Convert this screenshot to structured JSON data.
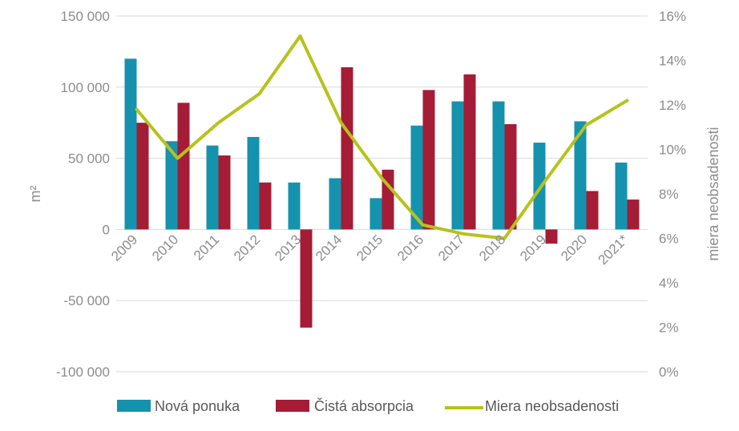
{
  "chart_data": {
    "type": "bar",
    "categories": [
      "2009",
      "2010",
      "2011",
      "2012",
      "2013",
      "2014",
      "2015",
      "2016",
      "2017",
      "2018",
      "2019",
      "2020",
      "2021*"
    ],
    "series": [
      {
        "name": "Nová ponuka",
        "kind": "bar",
        "axis": "left",
        "color": "#1592ad",
        "values": [
          120000,
          62000,
          59000,
          65000,
          33000,
          36000,
          22000,
          73000,
          90000,
          90000,
          61000,
          76000,
          47000
        ]
      },
      {
        "name": "Čistá absorpcia",
        "kind": "bar",
        "axis": "left",
        "color": "#a51c36",
        "values": [
          75000,
          89000,
          52000,
          33000,
          -69000,
          114000,
          42000,
          98000,
          109000,
          74000,
          -10000,
          27000,
          21000
        ]
      },
      {
        "name": "Miera neobsadenosti",
        "kind": "line",
        "axis": "right",
        "color": "#b7c21b",
        "values": [
          11.8,
          9.6,
          11.2,
          12.5,
          15.1,
          11.2,
          8.7,
          6.6,
          6.2,
          6.0,
          8.6,
          11.1,
          12.2
        ]
      }
    ],
    "y_left": {
      "label": "m²",
      "min": -100000,
      "max": 150000,
      "ticks": [
        -100000,
        -50000,
        0,
        50000,
        100000,
        150000
      ],
      "tick_labels": [
        "-100 000",
        "-50 000",
        "0",
        "50 000",
        "100 000",
        "150 000"
      ]
    },
    "y_right": {
      "label": "miera neobsadenosti",
      "min": 0,
      "max": 16,
      "ticks": [
        0,
        2,
        4,
        6,
        8,
        10,
        12,
        14,
        16
      ],
      "tick_labels": [
        "0%",
        "2%",
        "4%",
        "6%",
        "8%",
        "10%",
        "12%",
        "14%",
        "16%"
      ]
    },
    "grid": true,
    "legend": "bottom"
  }
}
